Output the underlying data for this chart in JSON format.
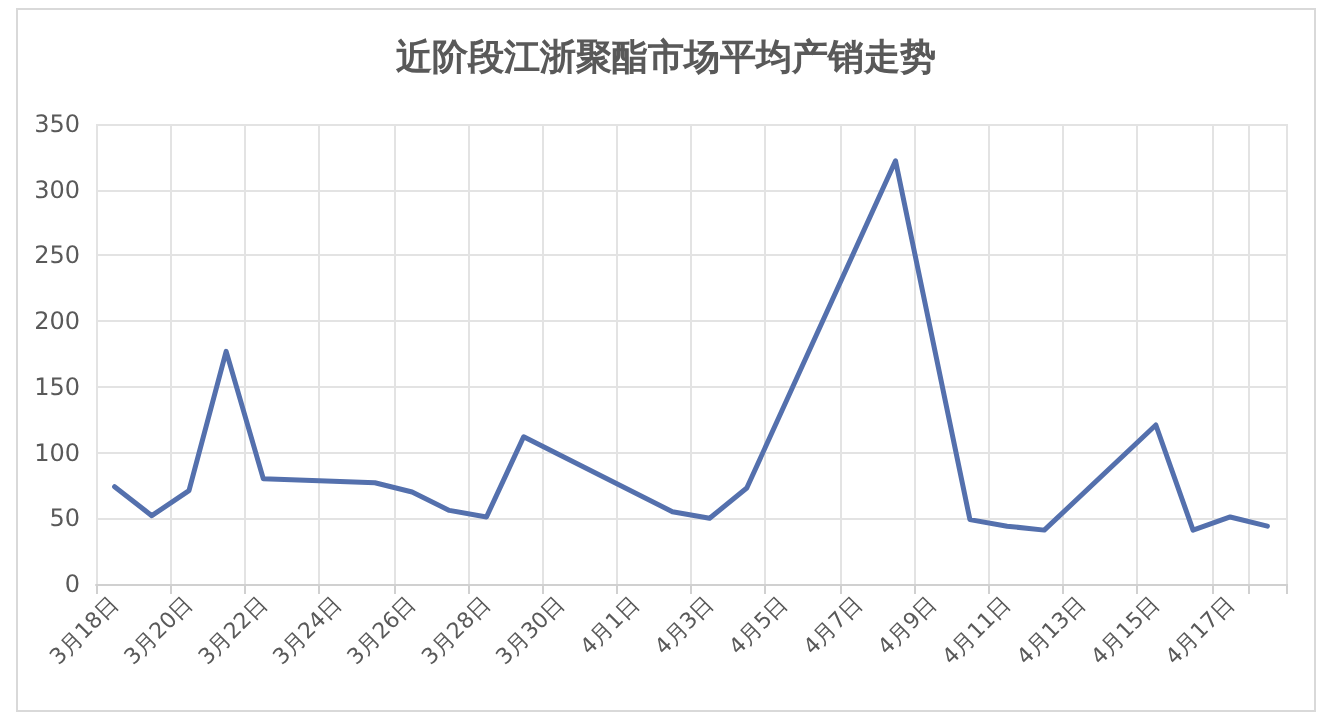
{
  "chart_data": {
    "type": "line",
    "title": "近阶段江浙聚酯市场平均产销走势",
    "categories": [
      "3月18日",
      null,
      "3月20日",
      null,
      "3月22日",
      null,
      "3月24日",
      null,
      "3月26日",
      null,
      "3月28日",
      null,
      "3月30日",
      null,
      "4月1日",
      null,
      "4月3日",
      null,
      "4月5日",
      null,
      "4月7日",
      null,
      "4月9日",
      null,
      "4月11日",
      null,
      "4月13日",
      null,
      "4月15日",
      null,
      "4月17日",
      null
    ],
    "series": [
      {
        "color": "#5470ad",
        "values": [
          74,
          52,
          71,
          177,
          80,
          null,
          null,
          77,
          70,
          56,
          51,
          112,
          null,
          null,
          null,
          55,
          50,
          73,
          null,
          null,
          null,
          322,
          null,
          49,
          44,
          41,
          null,
          null,
          121,
          41,
          51,
          44
        ]
      }
    ],
    "ylim": [
      0,
      350
    ],
    "yticks": [
      0,
      50,
      100,
      150,
      200,
      250,
      300,
      350
    ],
    "grid": true,
    "marker": "none",
    "line_style": "solid"
  }
}
